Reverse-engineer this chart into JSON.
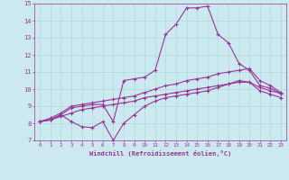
{
  "xlabel": "Windchill (Refroidissement éolien,°C)",
  "xlim": [
    -0.5,
    23.5
  ],
  "ylim": [
    7,
    15
  ],
  "xticks": [
    0,
    1,
    2,
    3,
    4,
    5,
    6,
    7,
    8,
    9,
    10,
    11,
    12,
    13,
    14,
    15,
    16,
    17,
    18,
    19,
    20,
    21,
    22,
    23
  ],
  "yticks": [
    7,
    8,
    9,
    10,
    11,
    12,
    13,
    14,
    15
  ],
  "bg_color": "#cbe9ee",
  "line_color": "#993399",
  "grid_color": "#aadddd",
  "spine_color": "#993399",
  "line1_x": [
    0,
    1,
    2,
    3,
    4,
    5,
    6,
    7,
    8,
    9,
    10,
    11,
    12,
    13,
    14,
    15,
    16,
    17,
    18,
    19,
    20,
    21,
    22,
    23
  ],
  "line1_y": [
    8.1,
    8.2,
    8.5,
    8.9,
    9.0,
    9.1,
    9.1,
    8.1,
    10.5,
    10.6,
    10.7,
    11.1,
    13.2,
    13.8,
    14.75,
    14.75,
    14.85,
    13.2,
    12.7,
    11.5,
    11.1,
    10.2,
    10.05,
    9.75
  ],
  "line2_x": [
    0,
    1,
    2,
    3,
    4,
    5,
    6,
    7,
    8,
    9,
    10,
    11,
    12,
    13,
    14,
    15,
    16,
    17,
    18,
    19,
    20,
    21,
    22,
    23
  ],
  "line2_y": [
    8.1,
    8.2,
    8.5,
    8.1,
    7.8,
    7.75,
    8.1,
    7.0,
    8.0,
    8.5,
    9.0,
    9.3,
    9.5,
    9.6,
    9.7,
    9.8,
    9.9,
    10.1,
    10.3,
    10.5,
    10.4,
    10.1,
    9.9,
    9.75
  ],
  "line3_x": [
    0,
    1,
    2,
    3,
    4,
    5,
    6,
    7,
    8,
    9,
    10,
    11,
    12,
    13,
    14,
    15,
    16,
    17,
    18,
    19,
    20,
    21,
    22,
    23
  ],
  "line3_y": [
    8.1,
    8.3,
    8.6,
    9.0,
    9.1,
    9.2,
    9.3,
    9.4,
    9.5,
    9.6,
    9.8,
    10.0,
    10.2,
    10.3,
    10.5,
    10.6,
    10.7,
    10.9,
    11.0,
    11.1,
    11.2,
    10.5,
    10.2,
    9.8
  ],
  "line4_x": [
    0,
    1,
    2,
    3,
    4,
    5,
    6,
    7,
    8,
    9,
    10,
    11,
    12,
    13,
    14,
    15,
    16,
    17,
    18,
    19,
    20,
    21,
    22,
    23
  ],
  "line4_y": [
    8.1,
    8.2,
    8.4,
    8.6,
    8.8,
    8.9,
    9.0,
    9.1,
    9.2,
    9.3,
    9.5,
    9.6,
    9.7,
    9.8,
    9.9,
    10.0,
    10.1,
    10.2,
    10.3,
    10.4,
    10.4,
    9.9,
    9.7,
    9.5
  ]
}
